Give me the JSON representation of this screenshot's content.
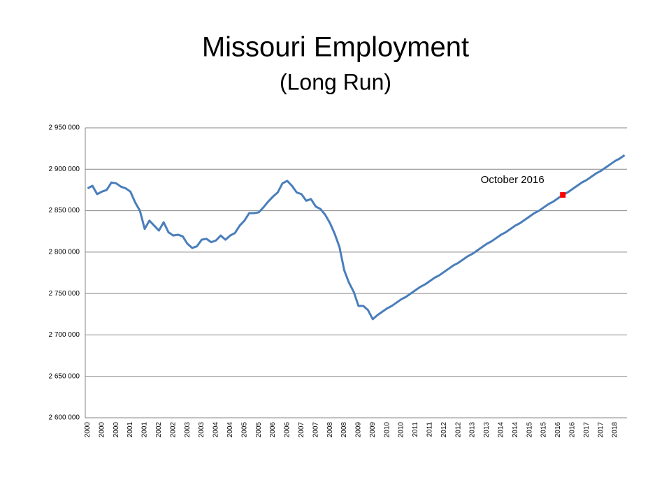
{
  "chart_data": {
    "type": "line",
    "title": "Missouri Employment",
    "subtitle": "(Long Run)",
    "color": "#4a7ebb",
    "grid": true,
    "categories": [
      "2000",
      null,
      null,
      "2000",
      null,
      null,
      "2000",
      null,
      null,
      "2001",
      null,
      null,
      "2001",
      null,
      null,
      "2002",
      null,
      null,
      "2002",
      null,
      null,
      "2003",
      null,
      null,
      "2003",
      null,
      null,
      "2004",
      null,
      null,
      "2004",
      null,
      null,
      "2005",
      null,
      null,
      "2005",
      null,
      null,
      "2006",
      null,
      null,
      "2006",
      null,
      null,
      "2007",
      null,
      null,
      "2007",
      null,
      null,
      "2008",
      null,
      null,
      "2008",
      null,
      null,
      "2009",
      null,
      null,
      "2009",
      null,
      null,
      "2010",
      null,
      null,
      "2010",
      null,
      null,
      "2011",
      null,
      null,
      "2011",
      null,
      null,
      "2012",
      null,
      null,
      "2012",
      null,
      null,
      "2013",
      null,
      null,
      "2013",
      null,
      null,
      "2014",
      null,
      null,
      "2014",
      null,
      null,
      "2015",
      null,
      null,
      "2015",
      null,
      null,
      "2016",
      null,
      null,
      "2016",
      null,
      null,
      "2017",
      null,
      null,
      "2017",
      null,
      null,
      "2018",
      null,
      null
    ],
    "values": [
      2877000,
      2880000,
      2870000,
      2873000,
      2875000,
      2884000,
      2883000,
      2879000,
      2877000,
      2873000,
      2860000,
      2850000,
      2828000,
      2838000,
      2832000,
      2826000,
      2836000,
      2824000,
      2820000,
      2821000,
      2819000,
      2810000,
      2805000,
      2807000,
      2815000,
      2816000,
      2812000,
      2814000,
      2820000,
      2815000,
      2820000,
      2823000,
      2832000,
      2838000,
      2847000,
      2847000,
      2848000,
      2854000,
      2861000,
      2867000,
      2872000,
      2883000,
      2886000,
      2880000,
      2872000,
      2870000,
      2862000,
      2864000,
      2855000,
      2852000,
      2845000,
      2835000,
      2822000,
      2806000,
      2778000,
      2763000,
      2752000,
      2735000,
      2735000,
      2730000,
      2719000,
      2724000,
      2728000,
      2732000,
      2735000,
      2739000,
      2743000,
      2746000,
      2750000,
      2754000,
      2758000,
      2761000,
      2765000,
      2769000,
      2772000,
      2776000,
      2780000,
      2784000,
      2787000,
      2791000,
      2795000,
      2798000,
      2802000,
      2806000,
      2810000,
      2813000,
      2817000,
      2821000,
      2824000,
      2828000,
      2832000,
      2835000,
      2839000,
      2843000,
      2847000,
      2850000,
      2854000,
      2858000,
      2861000,
      2865000,
      2869000,
      2872000,
      2876000,
      2880000,
      2884000,
      2887000,
      2891000,
      2895000,
      2898000,
      2902000,
      2906000,
      2910000,
      2913000,
      2917000
    ],
    "highlight": {
      "label": "October 2016",
      "color": "#ff0000",
      "values": [
        null,
        null,
        null,
        null,
        null,
        null,
        null,
        null,
        null,
        null,
        null,
        null,
        null,
        null,
        null,
        null,
        null,
        null,
        null,
        null,
        null,
        null,
        null,
        null,
        null,
        null,
        null,
        null,
        null,
        null,
        null,
        null,
        null,
        null,
        null,
        null,
        null,
        null,
        null,
        null,
        null,
        null,
        null,
        null,
        null,
        null,
        null,
        null,
        null,
        null,
        null,
        null,
        null,
        null,
        null,
        null,
        null,
        null,
        null,
        null,
        null,
        null,
        null,
        null,
        null,
        null,
        null,
        null,
        null,
        null,
        null,
        null,
        null,
        null,
        null,
        null,
        null,
        null,
        null,
        null,
        null,
        null,
        null,
        null,
        null,
        null,
        null,
        null,
        null,
        null,
        null,
        null,
        null,
        null,
        null,
        null,
        null,
        null,
        null,
        null,
        2869000,
        null,
        null,
        null,
        null,
        null,
        null,
        null,
        null,
        null,
        null,
        null,
        null,
        null
      ]
    },
    "ylim": [
      2600000,
      2950000
    ],
    "yticks": [
      {
        "value": 2600000,
        "label": "2 600 000"
      },
      {
        "value": 2650000,
        "label": "2 650 000"
      },
      {
        "value": 2700000,
        "label": "2 700 000"
      },
      {
        "value": 2750000,
        "label": "2 750 000"
      },
      {
        "value": 2800000,
        "label": "2 800 000"
      },
      {
        "value": 2850000,
        "label": "2 850 000"
      },
      {
        "value": 2900000,
        "label": "2 900 000"
      },
      {
        "value": 2950000,
        "label": "2 950 000"
      }
    ]
  }
}
